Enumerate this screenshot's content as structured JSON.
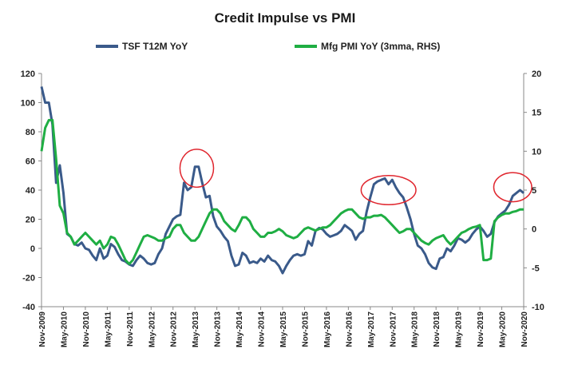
{
  "chart_data": {
    "type": "line",
    "title": "Credit Impulse vs PMI",
    "legend_position": "top",
    "grid": false,
    "colors": {
      "tsf": "#3a5a8a",
      "pmi": "#1fae43",
      "annotation": "#e0262e"
    },
    "y_left": {
      "range": [
        -40,
        120
      ],
      "ticks": [
        "120",
        "100",
        "80",
        "60",
        "40",
        "20",
        "0",
        "-20",
        "-40"
      ]
    },
    "y_right": {
      "range": [
        -10,
        20
      ],
      "ticks": [
        "20",
        "15",
        "10",
        "5",
        "0",
        "-5",
        "-10"
      ]
    },
    "x_range": [
      0,
      132
    ],
    "x_ticks": [
      {
        "label": "Nov-2009",
        "m": 0
      },
      {
        "label": "May-2010",
        "m": 6
      },
      {
        "label": "Nov-2010",
        "m": 12
      },
      {
        "label": "May-2011",
        "m": 18
      },
      {
        "label": "Nov-2011",
        "m": 24
      },
      {
        "label": "May-2012",
        "m": 30
      },
      {
        "label": "Nov-2012",
        "m": 36
      },
      {
        "label": "May-2013",
        "m": 42
      },
      {
        "label": "Nov-2013",
        "m": 48
      },
      {
        "label": "May-2014",
        "m": 54
      },
      {
        "label": "Nov-2014",
        "m": 60
      },
      {
        "label": "May-2015",
        "m": 66
      },
      {
        "label": "Nov-2015",
        "m": 72
      },
      {
        "label": "May-2016",
        "m": 78
      },
      {
        "label": "Nov-2016",
        "m": 84
      },
      {
        "label": "May-2017",
        "m": 90
      },
      {
        "label": "Nov-2017",
        "m": 96
      },
      {
        "label": "May-2018",
        "m": 102
      },
      {
        "label": "Nov-2018",
        "m": 108
      },
      {
        "label": "May-2019",
        "m": 114
      },
      {
        "label": "Nov-2019",
        "m": 120
      },
      {
        "label": "May-2020",
        "m": 126
      },
      {
        "label": "Nov-2020",
        "m": 132
      }
    ],
    "series": [
      {
        "name": "TSF T12M YoY",
        "axis": "left",
        "points": [
          [
            0,
            111
          ],
          [
            1,
            100
          ],
          [
            2,
            100
          ],
          [
            3,
            85
          ],
          [
            4,
            45
          ],
          [
            5,
            57
          ],
          [
            6,
            38
          ],
          [
            7,
            10
          ],
          [
            8,
            8
          ],
          [
            9,
            3
          ],
          [
            10,
            2
          ],
          [
            11,
            4
          ],
          [
            12,
            0
          ],
          [
            13,
            -1
          ],
          [
            14,
            -5
          ],
          [
            15,
            -8
          ],
          [
            16,
            0
          ],
          [
            17,
            -7
          ],
          [
            18,
            -5
          ],
          [
            19,
            3
          ],
          [
            20,
            1
          ],
          [
            21,
            -4
          ],
          [
            22,
            -8
          ],
          [
            23,
            -9
          ],
          [
            24,
            -11
          ],
          [
            25,
            -12
          ],
          [
            26,
            -8
          ],
          [
            27,
            -5
          ],
          [
            28,
            -7
          ],
          [
            29,
            -10
          ],
          [
            30,
            -11
          ],
          [
            31,
            -10
          ],
          [
            32,
            -4
          ],
          [
            33,
            0
          ],
          [
            34,
            10
          ],
          [
            35,
            15
          ],
          [
            36,
            20
          ],
          [
            37,
            22
          ],
          [
            38,
            23
          ],
          [
            39,
            45
          ],
          [
            40,
            40
          ],
          [
            41,
            42
          ],
          [
            42,
            56
          ],
          [
            43,
            56
          ],
          [
            44,
            45
          ],
          [
            45,
            35
          ],
          [
            46,
            36
          ],
          [
            47,
            22
          ],
          [
            48,
            15
          ],
          [
            49,
            12
          ],
          [
            50,
            8
          ],
          [
            51,
            5
          ],
          [
            52,
            -5
          ],
          [
            53,
            -12
          ],
          [
            54,
            -11
          ],
          [
            55,
            -3
          ],
          [
            56,
            -5
          ],
          [
            57,
            -10
          ],
          [
            58,
            -9
          ],
          [
            59,
            -10
          ],
          [
            60,
            -7
          ],
          [
            61,
            -9
          ],
          [
            62,
            -5
          ],
          [
            63,
            -8
          ],
          [
            64,
            -9
          ],
          [
            65,
            -12
          ],
          [
            66,
            -17
          ],
          [
            67,
            -12
          ],
          [
            68,
            -8
          ],
          [
            69,
            -5
          ],
          [
            70,
            -4
          ],
          [
            71,
            -5
          ],
          [
            72,
            -4
          ],
          [
            73,
            5
          ],
          [
            74,
            2
          ],
          [
            75,
            12
          ],
          [
            76,
            14
          ],
          [
            77,
            13
          ],
          [
            78,
            10
          ],
          [
            79,
            8
          ],
          [
            80,
            9
          ],
          [
            81,
            10
          ],
          [
            82,
            12
          ],
          [
            83,
            16
          ],
          [
            84,
            14
          ],
          [
            85,
            12
          ],
          [
            86,
            6
          ],
          [
            87,
            10
          ],
          [
            88,
            12
          ],
          [
            89,
            25
          ],
          [
            90,
            35
          ],
          [
            91,
            44
          ],
          [
            92,
            46
          ],
          [
            93,
            47
          ],
          [
            94,
            48
          ],
          [
            95,
            44
          ],
          [
            96,
            47
          ],
          [
            97,
            42
          ],
          [
            98,
            38
          ],
          [
            99,
            35
          ],
          [
            100,
            28
          ],
          [
            101,
            20
          ],
          [
            102,
            10
          ],
          [
            103,
            2
          ],
          [
            104,
            0
          ],
          [
            105,
            -4
          ],
          [
            106,
            -10
          ],
          [
            107,
            -13
          ],
          [
            108,
            -14
          ],
          [
            109,
            -7
          ],
          [
            110,
            -6
          ],
          [
            111,
            0
          ],
          [
            112,
            -2
          ],
          [
            113,
            2
          ],
          [
            114,
            7
          ],
          [
            115,
            6
          ],
          [
            116,
            4
          ],
          [
            117,
            6
          ],
          [
            118,
            10
          ],
          [
            119,
            13
          ],
          [
            120,
            15
          ],
          [
            121,
            12
          ],
          [
            122,
            8
          ],
          [
            123,
            10
          ],
          [
            124,
            18
          ],
          [
            125,
            22
          ],
          [
            126,
            24
          ],
          [
            127,
            26
          ],
          [
            128,
            30
          ],
          [
            129,
            36
          ],
          [
            130,
            38
          ],
          [
            131,
            40
          ],
          [
            132,
            38
          ]
        ]
      },
      {
        "name": "Mfg PMI YoY (3mma, RHS)",
        "axis": "right",
        "points": [
          [
            0,
            10
          ],
          [
            1,
            13
          ],
          [
            2,
            14
          ],
          [
            3,
            14
          ],
          [
            4,
            9
          ],
          [
            5,
            3
          ],
          [
            6,
            2
          ],
          [
            7,
            -0.5
          ],
          [
            8,
            -1
          ],
          [
            9,
            -2
          ],
          [
            10,
            -1.5
          ],
          [
            11,
            -1
          ],
          [
            12,
            -0.5
          ],
          [
            13,
            -1
          ],
          [
            14,
            -1.5
          ],
          [
            15,
            -2
          ],
          [
            16,
            -1.5
          ],
          [
            17,
            -2.5
          ],
          [
            18,
            -2
          ],
          [
            19,
            -1
          ],
          [
            20,
            -1.2
          ],
          [
            21,
            -2
          ],
          [
            22,
            -3
          ],
          [
            23,
            -4
          ],
          [
            24,
            -4.5
          ],
          [
            25,
            -4
          ],
          [
            26,
            -3
          ],
          [
            27,
            -2
          ],
          [
            28,
            -1
          ],
          [
            29,
            -0.8
          ],
          [
            30,
            -1
          ],
          [
            31,
            -1.2
          ],
          [
            32,
            -1.5
          ],
          [
            33,
            -1.5
          ],
          [
            34,
            -1.2
          ],
          [
            35,
            -1
          ],
          [
            36,
            0
          ],
          [
            37,
            0.5
          ],
          [
            38,
            0.5
          ],
          [
            39,
            -0.5
          ],
          [
            40,
            -1
          ],
          [
            41,
            -1.5
          ],
          [
            42,
            -1.5
          ],
          [
            43,
            -1
          ],
          [
            44,
            0
          ],
          [
            45,
            1
          ],
          [
            46,
            2
          ],
          [
            47,
            2.5
          ],
          [
            48,
            2.5
          ],
          [
            49,
            2
          ],
          [
            50,
            1
          ],
          [
            51,
            0.5
          ],
          [
            52,
            0
          ],
          [
            53,
            -0.3
          ],
          [
            54,
            0.5
          ],
          [
            55,
            1.5
          ],
          [
            56,
            1.5
          ],
          [
            57,
            1
          ],
          [
            58,
            0
          ],
          [
            59,
            -0.5
          ],
          [
            60,
            -1
          ],
          [
            61,
            -1
          ],
          [
            62,
            -0.5
          ],
          [
            63,
            -0.5
          ],
          [
            64,
            -0.3
          ],
          [
            65,
            0
          ],
          [
            66,
            -0.3
          ],
          [
            67,
            -0.8
          ],
          [
            68,
            -1
          ],
          [
            69,
            -1.2
          ],
          [
            70,
            -1
          ],
          [
            71,
            -0.5
          ],
          [
            72,
            0
          ],
          [
            73,
            0.2
          ],
          [
            74,
            0
          ],
          [
            75,
            -0.2
          ],
          [
            76,
            0
          ],
          [
            77,
            0.2
          ],
          [
            78,
            0.2
          ],
          [
            79,
            0.5
          ],
          [
            80,
            1
          ],
          [
            81,
            1.5
          ],
          [
            82,
            2
          ],
          [
            83,
            2.3
          ],
          [
            84,
            2.5
          ],
          [
            85,
            2.5
          ],
          [
            86,
            2
          ],
          [
            87,
            1.5
          ],
          [
            88,
            1.3
          ],
          [
            89,
            1.5
          ],
          [
            90,
            1.5
          ],
          [
            91,
            1.7
          ],
          [
            92,
            1.7
          ],
          [
            93,
            1.8
          ],
          [
            94,
            1.5
          ],
          [
            95,
            1
          ],
          [
            96,
            0.5
          ],
          [
            97,
            0
          ],
          [
            98,
            -0.5
          ],
          [
            99,
            -0.3
          ],
          [
            100,
            0
          ],
          [
            101,
            0
          ],
          [
            102,
            -0.5
          ],
          [
            103,
            -1
          ],
          [
            104,
            -1.5
          ],
          [
            105,
            -1.8
          ],
          [
            106,
            -2
          ],
          [
            107,
            -1.5
          ],
          [
            108,
            -1.2
          ],
          [
            109,
            -1
          ],
          [
            110,
            -0.8
          ],
          [
            111,
            -1.5
          ],
          [
            112,
            -2
          ],
          [
            113,
            -1.5
          ],
          [
            114,
            -1
          ],
          [
            115,
            -0.5
          ],
          [
            116,
            -0.3
          ],
          [
            117,
            0
          ],
          [
            118,
            0.2
          ],
          [
            119,
            0.3
          ],
          [
            120,
            0.5
          ],
          [
            121,
            -4
          ],
          [
            122,
            -4
          ],
          [
            123,
            -3.8
          ],
          [
            124,
            1
          ],
          [
            125,
            1.5
          ],
          [
            126,
            1.8
          ],
          [
            127,
            2
          ],
          [
            128,
            2
          ],
          [
            129,
            2.2
          ],
          [
            130,
            2.3
          ],
          [
            131,
            2.5
          ],
          [
            132,
            2.5
          ]
        ]
      }
    ],
    "annotations": [
      {
        "shape": "ellipse",
        "cx": 42.5,
        "cy": 55,
        "rx_m": 4.6,
        "ry_v": 13
      },
      {
        "shape": "ellipse",
        "cx": 95,
        "cy": 40,
        "rx_m": 7.5,
        "ry_v": 10
      },
      {
        "shape": "ellipse",
        "cx": 129,
        "cy": 42,
        "rx_m": 5.2,
        "ry_v": 10
      }
    ]
  }
}
